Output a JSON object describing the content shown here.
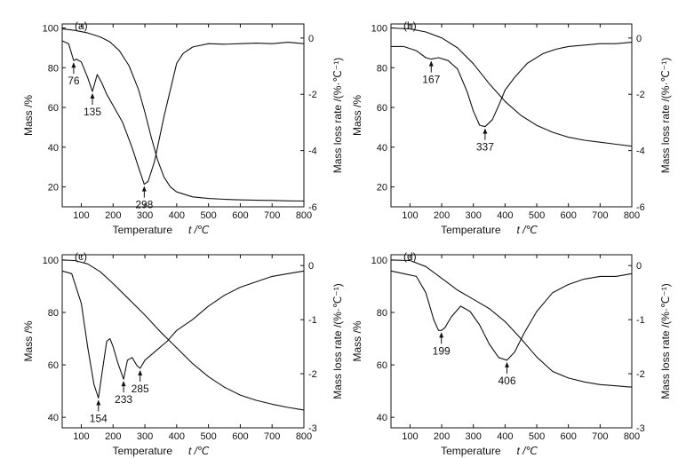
{
  "chart_data": [
    {
      "type": "line",
      "panel_label": "(a)",
      "xlabel_main": "Temperature",
      "xlabel_unit": "t /℃",
      "ylabel_left": "Mass /%",
      "ylabel_right": "Mass loss rate /(%·℃⁻¹)",
      "xlim": [
        40,
        800
      ],
      "x_ticks": [
        100,
        200,
        300,
        400,
        500,
        600,
        700,
        800
      ],
      "ylim_left": [
        10,
        102
      ],
      "y_ticks_left": [
        20,
        40,
        60,
        80,
        100
      ],
      "ylim_right": [
        -6.0,
        0.5
      ],
      "y_ticks_right": [
        0,
        -2,
        -4,
        -6
      ],
      "series": [
        {
          "axis": "left",
          "x": [
            40,
            80,
            120,
            160,
            190,
            220,
            250,
            280,
            300,
            320,
            340,
            360,
            380,
            400,
            450,
            500,
            550,
            600,
            650,
            700,
            750,
            800
          ],
          "values": [
            99.5,
            98.8,
            97.5,
            95.5,
            93,
            88.5,
            81,
            69,
            57.5,
            45,
            33.5,
            25,
            20,
            17.5,
            15,
            14.2,
            13.8,
            13.5,
            13.3,
            13.2,
            13.0,
            12.9
          ]
        },
        {
          "axis": "right",
          "x": [
            40,
            60,
            76,
            85,
            100,
            120,
            135,
            150,
            165,
            180,
            200,
            230,
            260,
            280,
            298,
            310,
            330,
            360,
            400,
            420,
            450,
            500,
            550,
            600,
            650,
            700,
            750,
            800
          ],
          "values": [
            -0.1,
            -0.2,
            -0.8,
            -0.75,
            -0.85,
            -1.4,
            -1.9,
            -1.3,
            -1.6,
            -2.0,
            -2.4,
            -3.0,
            -3.9,
            -4.6,
            -5.2,
            -5.1,
            -4.4,
            -2.8,
            -0.9,
            -0.55,
            -0.32,
            -0.2,
            -0.22,
            -0.2,
            -0.18,
            -0.2,
            -0.15,
            -0.2
          ]
        }
      ],
      "annotations": [
        {
          "label": "76",
          "x": 76,
          "y_right": -0.8
        },
        {
          "label": "135",
          "x": 135,
          "y_right": -1.9
        },
        {
          "label": "298",
          "x": 298,
          "y_right": -5.2
        }
      ]
    },
    {
      "type": "line",
      "panel_label": "(b)",
      "xlabel_main": "Temperature",
      "xlabel_unit": "t /℃",
      "ylabel_left": "Mass /%",
      "ylabel_right": "Mass loss rate /(%·℃⁻¹)",
      "xlim": [
        40,
        800
      ],
      "x_ticks": [
        100,
        200,
        300,
        400,
        500,
        600,
        700,
        800
      ],
      "ylim_left": [
        10,
        102
      ],
      "y_ticks_left": [
        20,
        40,
        60,
        80,
        100
      ],
      "ylim_right": [
        -6.0,
        0.5
      ],
      "y_ticks_right": [
        0,
        -2,
        -4,
        -6
      ],
      "series": [
        {
          "axis": "left",
          "x": [
            40,
            100,
            150,
            200,
            250,
            300,
            350,
            400,
            450,
            500,
            550,
            600,
            650,
            700,
            750,
            800
          ],
          "values": [
            100,
            99.5,
            98,
            95,
            90,
            82,
            72,
            63,
            56,
            51,
            47.5,
            45,
            43.5,
            42.5,
            41.5,
            40.5
          ]
        },
        {
          "axis": "right",
          "x": [
            40,
            80,
            120,
            150,
            167,
            190,
            220,
            250,
            280,
            300,
            320,
            337,
            360,
            380,
            400,
            430,
            470,
            520,
            560,
            600,
            650,
            700,
            750,
            800
          ],
          "values": [
            -0.3,
            -0.3,
            -0.45,
            -0.7,
            -0.75,
            -0.7,
            -0.8,
            -1.1,
            -1.9,
            -2.6,
            -3.1,
            -3.15,
            -2.9,
            -2.4,
            -1.85,
            -1.4,
            -0.9,
            -0.55,
            -0.4,
            -0.3,
            -0.25,
            -0.2,
            -0.2,
            -0.15
          ]
        }
      ],
      "annotations": [
        {
          "label": "167",
          "x": 167,
          "y_right": -0.75
        },
        {
          "label": "337",
          "x": 337,
          "y_right": -3.15
        }
      ]
    },
    {
      "type": "line",
      "panel_label": "(c)",
      "xlabel_main": "Temperature",
      "xlabel_unit": "t /℃",
      "ylabel_left": "Mass /%",
      "ylabel_right": "Mass loss rate /(%·℃⁻¹)",
      "xlim": [
        40,
        800
      ],
      "x_ticks": [
        100,
        200,
        300,
        400,
        500,
        600,
        700,
        800
      ],
      "ylim_left": [
        36,
        102
      ],
      "y_ticks_left": [
        40,
        60,
        80,
        100
      ],
      "ylim_right": [
        -3.0,
        0.2
      ],
      "y_ticks_right": [
        0,
        -1,
        -2,
        -3
      ],
      "series": [
        {
          "axis": "left",
          "x": [
            40,
            80,
            120,
            160,
            200,
            250,
            300,
            350,
            400,
            450,
            500,
            550,
            600,
            650,
            700,
            750,
            800
          ],
          "values": [
            100,
            99.8,
            98.5,
            95.5,
            91,
            85,
            79,
            72.5,
            66.5,
            60.5,
            55.5,
            51.5,
            48.5,
            46.5,
            45,
            43.8,
            42.8
          ]
        },
        {
          "axis": "right",
          "x": [
            40,
            70,
            100,
            120,
            140,
            154,
            165,
            180,
            190,
            200,
            215,
            233,
            245,
            260,
            275,
            285,
            300,
            330,
            370,
            400,
            450,
            500,
            550,
            600,
            650,
            700,
            750,
            800
          ],
          "values": [
            -0.1,
            -0.15,
            -0.7,
            -1.5,
            -2.2,
            -2.45,
            -2.0,
            -1.4,
            -1.35,
            -1.5,
            -1.8,
            -2.1,
            -1.75,
            -1.7,
            -1.85,
            -1.9,
            -1.75,
            -1.6,
            -1.4,
            -1.2,
            -1.0,
            -0.75,
            -0.55,
            -0.4,
            -0.3,
            -0.2,
            -0.15,
            -0.1
          ]
        }
      ],
      "annotations": [
        {
          "label": "154",
          "x": 154,
          "y_right": -2.45
        },
        {
          "label": "233",
          "x": 233,
          "y_right": -2.1
        },
        {
          "label": "285",
          "x": 285,
          "y_right": -1.9
        }
      ]
    },
    {
      "type": "line",
      "panel_label": "(d)",
      "xlabel_main": "Temperature",
      "xlabel_unit": "t /℃",
      "ylabel_left": "Mass /%",
      "ylabel_right": "Mass loss rate /(%·℃⁻¹)",
      "xlim": [
        40,
        800
      ],
      "x_ticks": [
        100,
        200,
        300,
        400,
        500,
        600,
        700,
        800
      ],
      "ylim_left": [
        36,
        102
      ],
      "y_ticks_left": [
        40,
        60,
        80,
        100
      ],
      "ylim_right": [
        -3.0,
        0.2
      ],
      "y_ticks_right": [
        0,
        -1,
        -2,
        -3
      ],
      "series": [
        {
          "axis": "left",
          "x": [
            40,
            100,
            150,
            200,
            250,
            300,
            350,
            400,
            450,
            500,
            550,
            600,
            650,
            700,
            750,
            800
          ],
          "values": [
            100,
            99.8,
            97.5,
            93,
            88.5,
            85,
            81.5,
            76.5,
            70,
            63,
            57.5,
            55,
            53.5,
            52.5,
            52,
            51.5
          ]
        },
        {
          "axis": "right",
          "x": [
            40,
            80,
            120,
            150,
            175,
            190,
            199,
            210,
            230,
            260,
            290,
            320,
            350,
            380,
            406,
            430,
            460,
            500,
            550,
            600,
            650,
            700,
            750,
            800
          ],
          "values": [
            -0.1,
            -0.15,
            -0.2,
            -0.5,
            -1.0,
            -1.2,
            -1.2,
            -1.15,
            -0.95,
            -0.75,
            -0.85,
            -1.1,
            -1.45,
            -1.7,
            -1.75,
            -1.6,
            -1.25,
            -0.85,
            -0.5,
            -0.35,
            -0.25,
            -0.2,
            -0.2,
            -0.15
          ]
        }
      ],
      "annotations": [
        {
          "label": "199",
          "x": 199,
          "y_right": -1.2
        },
        {
          "label": "406",
          "x": 406,
          "y_right": -1.75
        }
      ]
    }
  ]
}
